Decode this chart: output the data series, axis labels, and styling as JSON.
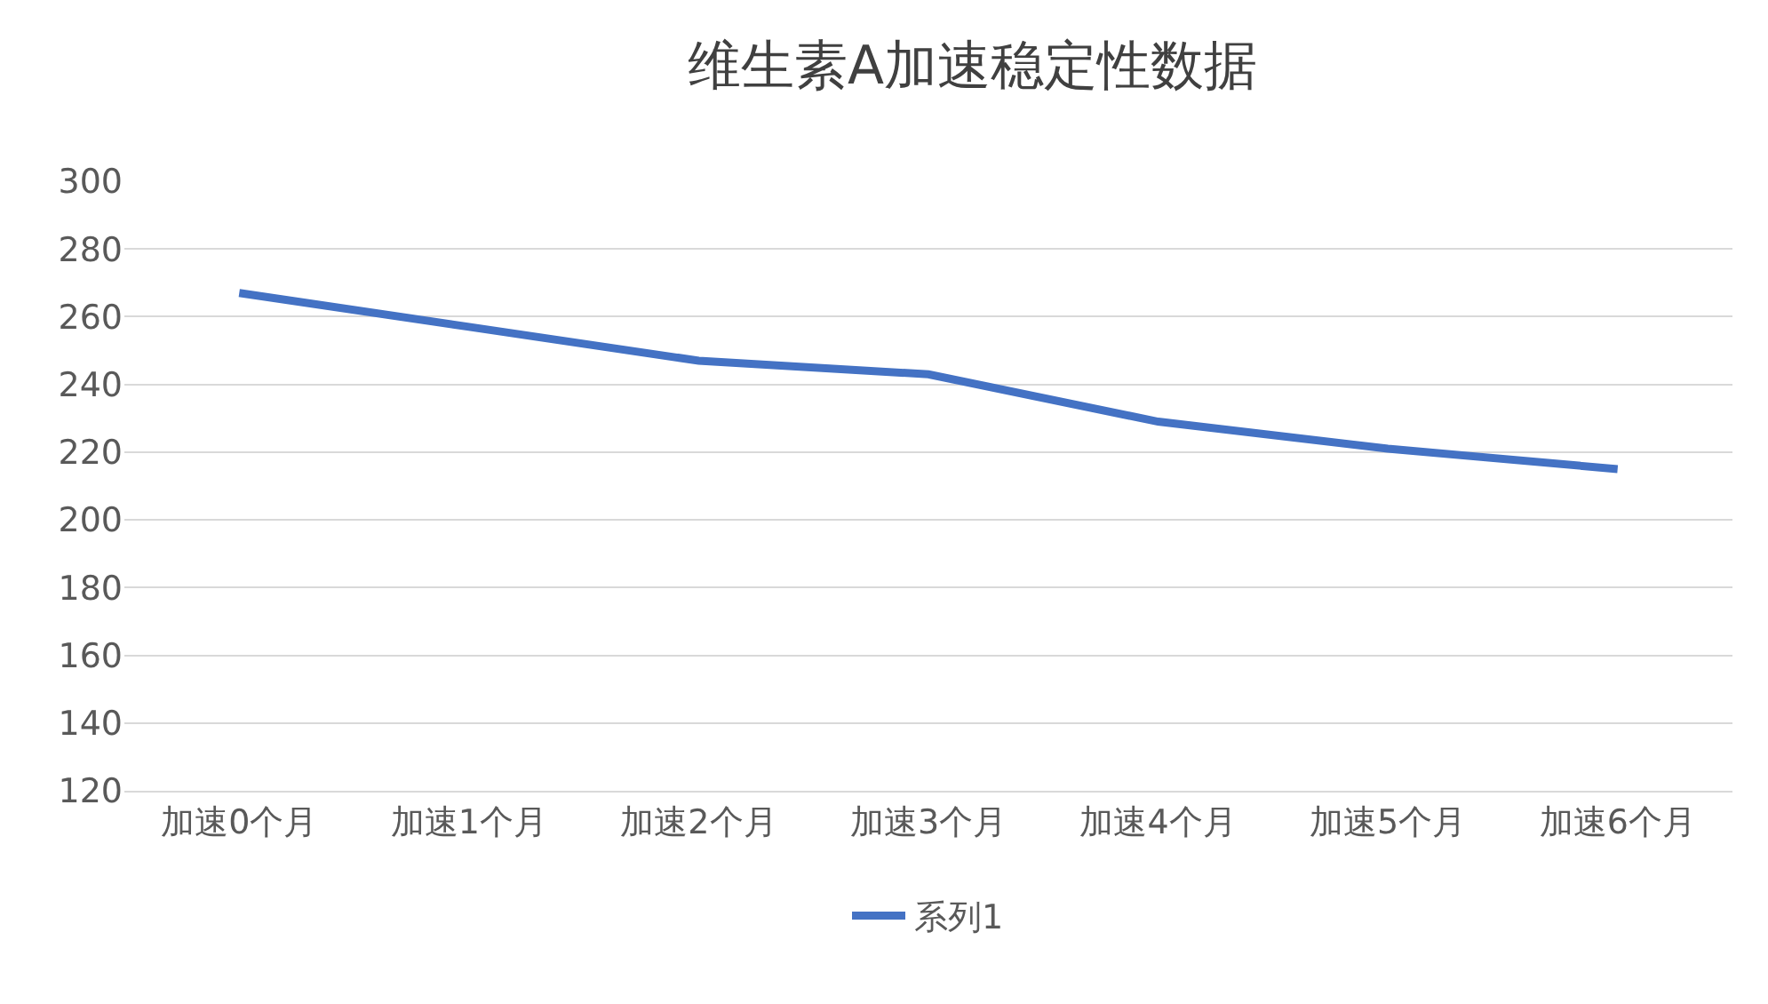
{
  "chart_data": {
    "type": "line",
    "title": "维生素A加速稳定性数据",
    "categories": [
      "加速0个月",
      "加速1个月",
      "加速2个月",
      "加速3个月",
      "加速4个月",
      "加速5个月",
      "加速6个月"
    ],
    "series": [
      {
        "name": "系列1",
        "color": "#4472c4",
        "values": [
          267,
          257,
          247,
          243,
          229,
          221,
          215
        ]
      }
    ],
    "ylim": [
      120,
      300
    ],
    "yticks": [
      120,
      140,
      160,
      180,
      200,
      220,
      240,
      260,
      280,
      300
    ],
    "grid": "y",
    "legend": "bottom",
    "marker": "none",
    "line_style": "solid"
  }
}
